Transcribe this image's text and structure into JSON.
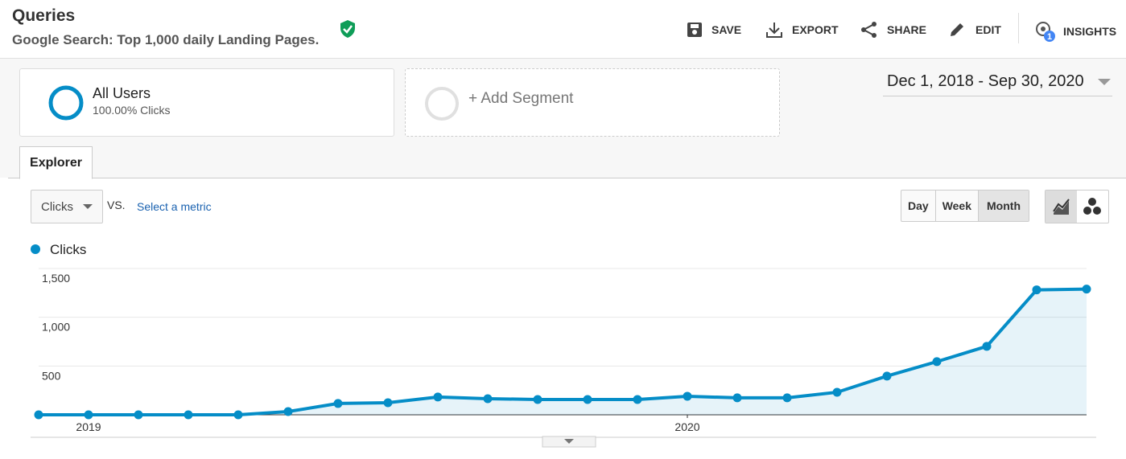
{
  "header": {
    "title": "Queries",
    "subtitle": "Google Search: Top 1,000 daily Landing Pages."
  },
  "toolbar": {
    "buttons": [
      "SAVE",
      "EXPORT",
      "SHARE",
      "EDIT",
      "INSIGHTS"
    ],
    "insights_badge": "1"
  },
  "segments": {
    "active": {
      "name": "All Users",
      "detail": "100.00% Clicks"
    },
    "add": "+ Add Segment"
  },
  "date_range": "Dec 1, 2018 - Sep 30, 2020",
  "tabs": [
    "Explorer"
  ],
  "controls": {
    "metric": "Clicks",
    "vs": "VS.",
    "select_metric": "Select a metric",
    "granularity": [
      "Day",
      "Week",
      "Month"
    ],
    "selected_granularity": "Month"
  },
  "chart_data": {
    "type": "line",
    "area": true,
    "categories": [
      null,
      "2019",
      null,
      null,
      null,
      null,
      null,
      null,
      null,
      null,
      null,
      null,
      null,
      "2020",
      null,
      null,
      null,
      null,
      null,
      null,
      null,
      null
    ],
    "series": [
      {
        "name": "Clicks",
        "color": "#058dc7",
        "values": [
          0,
          0,
          0,
          0,
          0,
          33,
          116,
          124,
          182,
          165,
          157,
          157,
          157,
          190,
          174,
          174,
          231,
          397,
          545,
          702,
          1281,
          1289
        ]
      }
    ],
    "ylim": [
      0,
      1500
    ],
    "yticks": [
      500,
      {
        "value": 1000,
        "label": "1,000"
      },
      {
        "value": 1500,
        "label": "1,500"
      }
    ],
    "grid": true
  }
}
